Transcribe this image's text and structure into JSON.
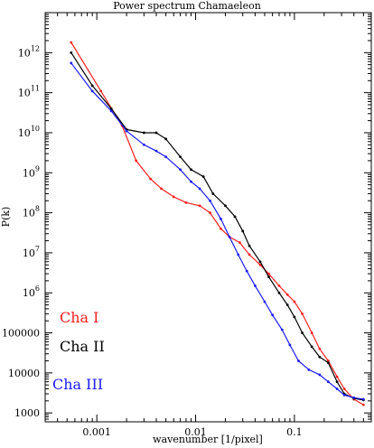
{
  "chart_data": {
    "type": "line",
    "title": "Power spectrum Chamaeleon",
    "xlabel": "wavenumber [1/pixel]",
    "ylabel": "P(k)",
    "xscale": "log",
    "yscale": "log",
    "xlim": [
      0.0003,
      0.6
    ],
    "ylim": [
      600,
      10000000000000
    ],
    "grid": false,
    "legend_position": "bottom-left",
    "x_ticks": [
      {
        "value": 0.001,
        "label": "0.001"
      },
      {
        "value": 0.01,
        "label": "0.01"
      },
      {
        "value": 0.1,
        "label": "0.1"
      }
    ],
    "y_ticks": [
      {
        "value": 1000,
        "base": "1000",
        "exp": ""
      },
      {
        "value": 10000,
        "base": "10000",
        "exp": ""
      },
      {
        "value": 100000,
        "base": "100000",
        "exp": ""
      },
      {
        "value": 1000000,
        "base": "10",
        "exp": "6"
      },
      {
        "value": 10000000,
        "base": "10",
        "exp": "7"
      },
      {
        "value": 100000000,
        "base": "10",
        "exp": "8"
      },
      {
        "value": 1000000000,
        "base": "10",
        "exp": "9"
      },
      {
        "value": 10000000000,
        "base": "10",
        "exp": "10"
      },
      {
        "value": 100000000000,
        "base": "10",
        "exp": "11"
      },
      {
        "value": 1000000000000,
        "base": "10",
        "exp": "12"
      }
    ],
    "series": [
      {
        "name": "Cha I",
        "color": "#ff2020",
        "points": [
          [
            0.00055,
            1800000000000
          ],
          [
            0.0011,
            110000000000
          ],
          [
            0.0018,
            15000000000
          ],
          [
            0.0025,
            2000000000
          ],
          [
            0.0035,
            700000000
          ],
          [
            0.0045,
            400000000
          ],
          [
            0.006,
            250000000
          ],
          [
            0.008,
            180000000
          ],
          [
            0.011,
            150000000
          ],
          [
            0.014,
            100000000
          ],
          [
            0.018,
            40000000
          ],
          [
            0.022,
            25000000
          ],
          [
            0.028,
            18000000
          ],
          [
            0.035,
            9000000
          ],
          [
            0.045,
            5000000
          ],
          [
            0.055,
            3000000
          ],
          [
            0.07,
            1500000
          ],
          [
            0.085,
            900000
          ],
          [
            0.1,
            600000
          ],
          [
            0.12,
            300000
          ],
          [
            0.15,
            100000
          ],
          [
            0.18,
            40000
          ],
          [
            0.22,
            20000
          ],
          [
            0.27,
            8000
          ],
          [
            0.32,
            4000
          ],
          [
            0.4,
            2200
          ],
          [
            0.5,
            1600
          ]
        ]
      },
      {
        "name": "Cha II",
        "color": "#000000",
        "points": [
          [
            0.00055,
            1000000000000
          ],
          [
            0.0009,
            150000000000
          ],
          [
            0.0014,
            40000000000
          ],
          [
            0.002,
            12000000000
          ],
          [
            0.003,
            10000000000
          ],
          [
            0.004,
            10000000000
          ],
          [
            0.005,
            7000000000
          ],
          [
            0.007,
            2500000000
          ],
          [
            0.009,
            1200000000
          ],
          [
            0.012,
            800000000
          ],
          [
            0.015,
            300000000
          ],
          [
            0.02,
            150000000
          ],
          [
            0.025,
            80000000
          ],
          [
            0.03,
            35000000
          ],
          [
            0.035,
            15000000
          ],
          [
            0.045,
            6000000
          ],
          [
            0.055,
            2500000
          ],
          [
            0.07,
            1000000
          ],
          [
            0.085,
            500000
          ],
          [
            0.1,
            250000
          ],
          [
            0.12,
            100000
          ],
          [
            0.15,
            45000
          ],
          [
            0.18,
            25000
          ],
          [
            0.22,
            18000
          ],
          [
            0.27,
            6000
          ],
          [
            0.32,
            3000
          ],
          [
            0.4,
            2300
          ],
          [
            0.5,
            2100
          ]
        ]
      },
      {
        "name": "Cha III",
        "color": "#1a1aff",
        "points": [
          [
            0.00055,
            550000000000
          ],
          [
            0.0009,
            110000000000
          ],
          [
            0.0014,
            35000000000
          ],
          [
            0.002,
            11000000000
          ],
          [
            0.003,
            5000000000
          ],
          [
            0.004,
            3500000000
          ],
          [
            0.005,
            2500000000
          ],
          [
            0.007,
            1200000000
          ],
          [
            0.009,
            600000000
          ],
          [
            0.011,
            400000000
          ],
          [
            0.014,
            200000000
          ],
          [
            0.018,
            70000000
          ],
          [
            0.022,
            25000000
          ],
          [
            0.027,
            9000000
          ],
          [
            0.033,
            3500000
          ],
          [
            0.04,
            1500000
          ],
          [
            0.05,
            600000
          ],
          [
            0.06,
            280000
          ],
          [
            0.075,
            120000
          ],
          [
            0.09,
            50000
          ],
          [
            0.11,
            20000
          ],
          [
            0.14,
            12000
          ],
          [
            0.18,
            9000
          ],
          [
            0.22,
            6000
          ],
          [
            0.27,
            4000
          ],
          [
            0.32,
            2800
          ],
          [
            0.4,
            2400
          ],
          [
            0.5,
            2200
          ]
        ]
      }
    ]
  }
}
